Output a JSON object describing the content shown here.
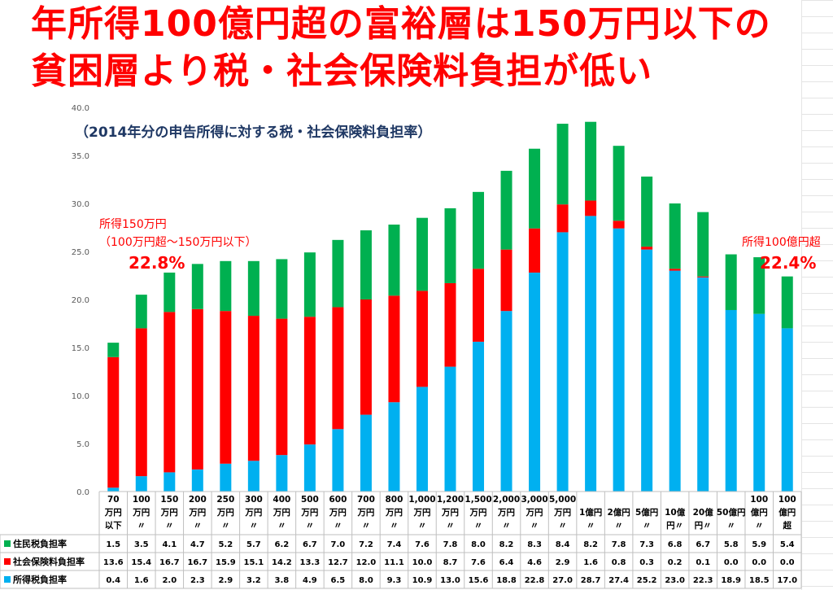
{
  "header": {
    "title_line1": "年所得100億円超の富裕層は150万円以下の",
    "title_line2": "貧困層より税・社会保険料負担が低い"
  },
  "chart_data": {
    "type": "bar",
    "stacked": true,
    "subtitle": "（2014年分の申告所得に対する税・社会保険料負担率）",
    "ylim": [
      0,
      40
    ],
    "yticks": [
      "0.0",
      "5.0",
      "10.0",
      "15.0",
      "20.0",
      "25.0",
      "30.0",
      "35.0",
      "40.0"
    ],
    "grid": false,
    "legend_placement": "table-left",
    "categories": [
      [
        "70",
        "万円",
        "以下"
      ],
      [
        "100",
        "万円",
        "〃"
      ],
      [
        "150",
        "万円",
        "〃"
      ],
      [
        "200",
        "万円",
        "〃"
      ],
      [
        "250",
        "万円",
        "〃"
      ],
      [
        "300",
        "万円",
        "〃"
      ],
      [
        "400",
        "万円",
        "〃"
      ],
      [
        "500",
        "万円",
        "〃"
      ],
      [
        "600",
        "万円",
        "〃"
      ],
      [
        "700",
        "万円",
        "〃"
      ],
      [
        "800",
        "万円",
        "〃"
      ],
      [
        "1,000",
        "万円",
        "〃"
      ],
      [
        "1,200",
        "万円",
        "〃"
      ],
      [
        "1,500",
        "万円",
        "〃"
      ],
      [
        "2,000",
        "万円",
        "〃"
      ],
      [
        "3,000",
        "万円",
        "〃"
      ],
      [
        "5,000",
        "万円",
        "〃"
      ],
      [
        "",
        "1億円",
        "〃"
      ],
      [
        "",
        "2億円",
        "〃"
      ],
      [
        "",
        "5億円",
        "〃"
      ],
      [
        "",
        "10億",
        "円〃"
      ],
      [
        "",
        "20億",
        "円〃"
      ],
      [
        "",
        "50億円",
        "〃"
      ],
      [
        "100",
        "億円",
        "〃"
      ],
      [
        "100",
        "億円",
        "超"
      ]
    ],
    "series": [
      {
        "name": "所得税負担率",
        "color": "#00b0f0",
        "values": [
          0.4,
          1.6,
          2.0,
          2.3,
          2.9,
          3.2,
          3.8,
          4.9,
          6.5,
          8.0,
          9.3,
          10.9,
          13.0,
          15.6,
          18.8,
          22.8,
          27.0,
          28.7,
          27.4,
          25.2,
          23.0,
          22.3,
          18.9,
          18.5,
          17.0
        ]
      },
      {
        "name": "社会保険料負担率",
        "color": "#ff0000",
        "values": [
          13.6,
          15.4,
          16.7,
          16.7,
          15.9,
          15.1,
          14.2,
          13.3,
          12.7,
          12.0,
          11.1,
          10.0,
          8.7,
          7.6,
          6.4,
          4.6,
          2.9,
          1.6,
          0.8,
          0.3,
          0.2,
          0.1,
          0.0,
          0.0,
          0.0
        ]
      },
      {
        "name": "住民税負担率",
        "color": "#00b050",
        "values": [
          1.5,
          3.5,
          4.1,
          4.7,
          5.2,
          5.7,
          6.2,
          6.7,
          7.0,
          7.2,
          7.4,
          7.6,
          7.8,
          8.0,
          8.2,
          8.3,
          8.4,
          8.2,
          7.8,
          7.3,
          6.8,
          6.7,
          5.8,
          5.9,
          5.4
        ]
      }
    ],
    "table_row_order": [
      2,
      1,
      0
    ],
    "annotations": {
      "left_line1": "所得150万円",
      "left_line2": "（100万円超～150万円以下）",
      "left_value": "22.8%",
      "right_line1": "所得100億円超",
      "right_value": "22.4%"
    }
  }
}
